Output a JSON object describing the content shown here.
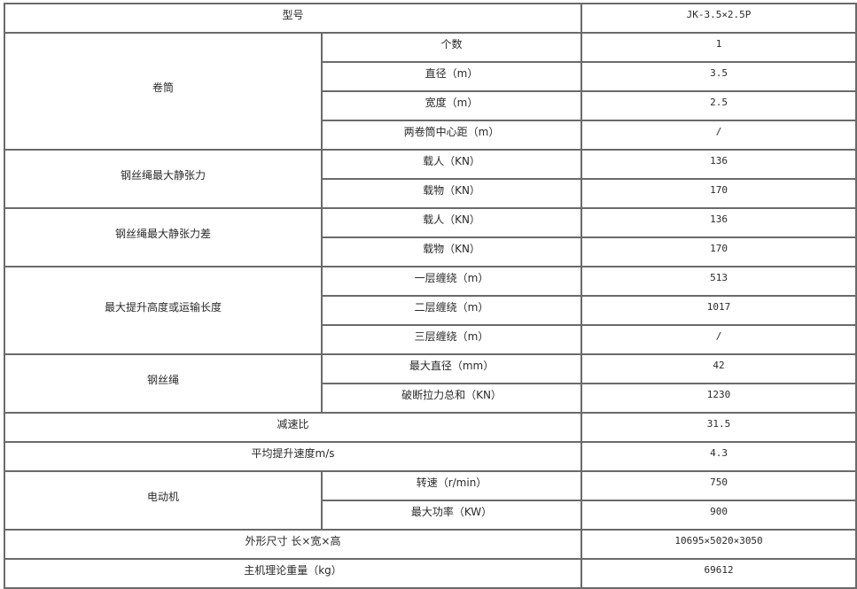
{
  "table": {
    "model_label": "型号",
    "model_value": "JK-3.5×2.5P",
    "groups": {
      "drum": {
        "label": "卷筒",
        "rows": [
          {
            "label": "个数",
            "value": "1"
          },
          {
            "label": "直径（m）",
            "value": "3.5"
          },
          {
            "label": "宽度（m）",
            "value": "2.5"
          },
          {
            "label": "两卷筒中心距（m）",
            "value": "/"
          }
        ]
      },
      "max_static_tension": {
        "label": "钢丝绳最大静张力",
        "rows": [
          {
            "label": "载人（KN）",
            "value": "136"
          },
          {
            "label": "载物（KN）",
            "value": "170"
          }
        ]
      },
      "max_static_tension_diff": {
        "label": "钢丝绳最大静张力差",
        "rows": [
          {
            "label": "载人（KN）",
            "value": "136"
          },
          {
            "label": "载物（KN）",
            "value": "170"
          }
        ]
      },
      "max_lift_height": {
        "label": "最大提升高度或运输长度",
        "rows": [
          {
            "label": "一层缠绕（m）",
            "value": "513"
          },
          {
            "label": "二层缠绕（m）",
            "value": "1017"
          },
          {
            "label": "三层缠绕（m）",
            "value": "/"
          }
        ]
      },
      "wire_rope": {
        "label": "钢丝绳",
        "rows": [
          {
            "label": "最大直径（mm）",
            "value": "42"
          },
          {
            "label": "破断拉力总和（KN）",
            "value": "1230"
          }
        ]
      },
      "motor": {
        "label": "电动机",
        "rows": [
          {
            "label": "转速（r/min）",
            "value": "750"
          },
          {
            "label": "最大功率（KW）",
            "value": "900"
          }
        ]
      }
    },
    "reduction_ratio": {
      "label": "减速比",
      "value": "31.5"
    },
    "avg_speed": {
      "label": "平均提升速度m/s",
      "value": "4.3"
    },
    "dimensions": {
      "label": "外形尺寸 长×宽×高",
      "value": "10695×5020×3050"
    },
    "weight": {
      "label": "主机理论重量（kg）",
      "value": "69612"
    }
  }
}
